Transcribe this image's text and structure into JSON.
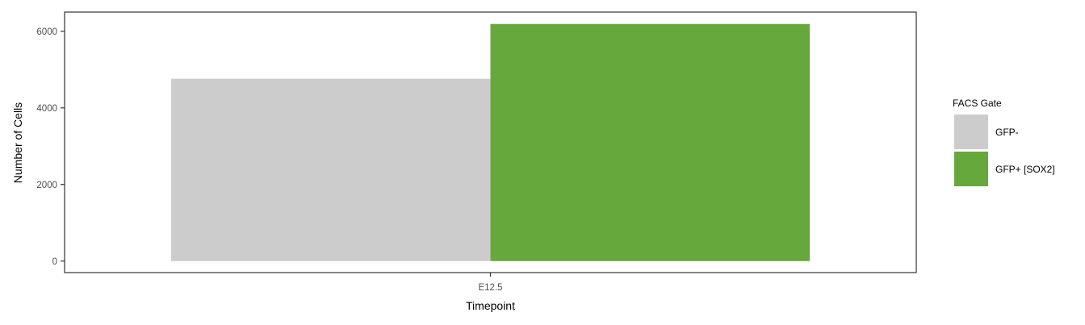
{
  "chart_data": {
    "type": "bar",
    "title": "",
    "xlabel": "Timepoint",
    "ylabel": "Number of Cells",
    "categories": [
      "E12.5"
    ],
    "ylim": [
      -300,
      6500
    ],
    "yticks": [
      0,
      2000,
      4000,
      6000
    ],
    "grid": false,
    "legend": {
      "title": "FACS Gate",
      "position": "right"
    },
    "series": [
      {
        "name": "GFP-",
        "color": "#cccccc",
        "values": [
          4760
        ]
      },
      {
        "name": "GFP+ [SOX2]",
        "color": "#66a83c",
        "values": [
          6190
        ]
      }
    ]
  }
}
